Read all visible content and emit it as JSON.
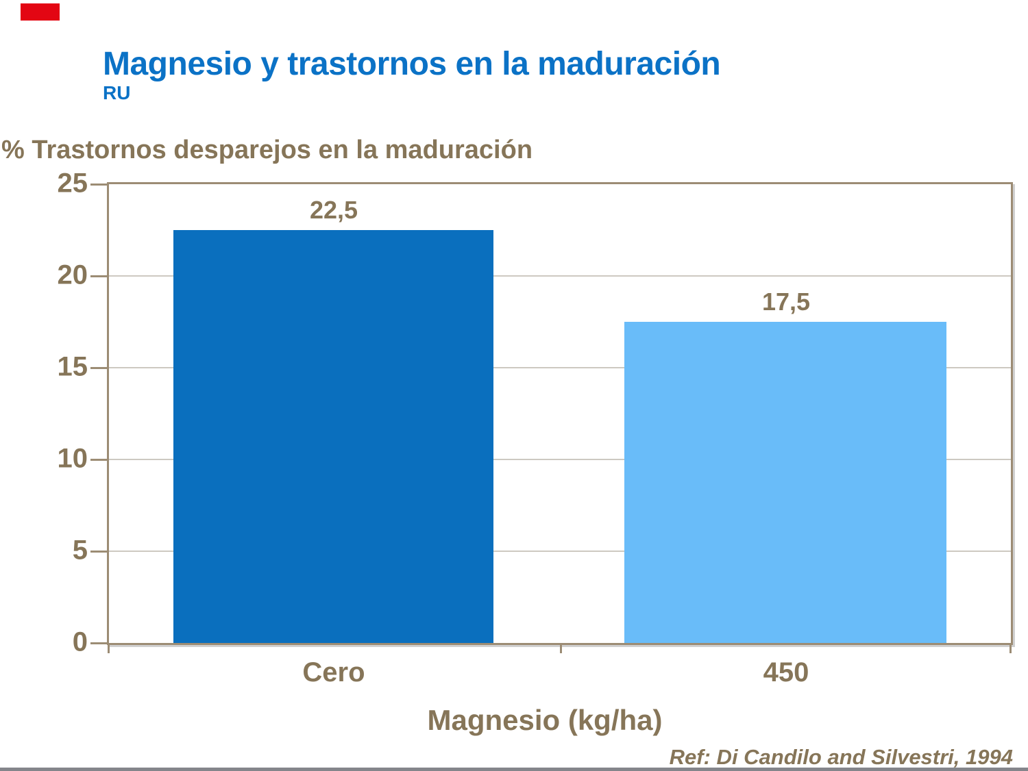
{
  "slide": {
    "title": "Magnesio y trastornos en la maduración",
    "subtitle": "RU",
    "reference": "Ref: Di Candilo and Silvestri, 1994",
    "accent_color": "#e30613",
    "title_color": "#0b72c6",
    "text_color": "#867558",
    "bottom_rule_color": "#84858b"
  },
  "chart_data": {
    "type": "bar",
    "title": "% Trastornos desparejos en la maduración",
    "xlabel": "Magnesio (kg/ha)",
    "ylabel": "% Trastornos desparejos en la maduración",
    "categories": [
      "Cero",
      "450"
    ],
    "values": [
      22.5,
      17.5
    ],
    "value_labels": [
      "22,5",
      "17,5"
    ],
    "bar_colors": [
      "#0a6fbe",
      "#69bcf9"
    ],
    "ylim": [
      0,
      25
    ],
    "yticks": [
      0,
      5,
      10,
      15,
      20,
      25
    ],
    "ytick_labels": [
      "0",
      "5",
      "10",
      "15",
      "20",
      "25"
    ],
    "grid": true,
    "legend": false,
    "frame_color": "#9c8c74",
    "gridline_color": "#cdc9c1"
  }
}
